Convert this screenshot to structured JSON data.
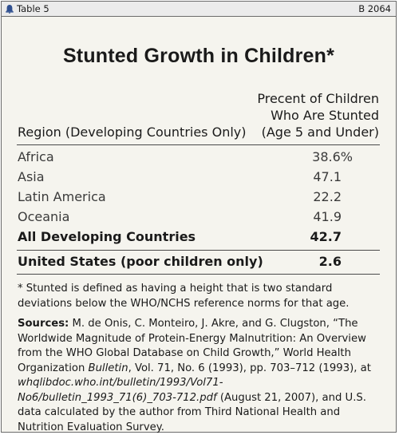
{
  "header": {
    "label": "Table 5",
    "code": "B 2064",
    "icon": "bell-icon"
  },
  "title": "Stunted Growth in Children*",
  "columns": {
    "region": "Region (Developing Countries Only)",
    "value_lines": [
      "Precent of Children",
      "Who Are Stunted",
      "(Age 5 and Under)"
    ]
  },
  "rows": [
    {
      "region": "Africa",
      "value": "38.6%"
    },
    {
      "region": "Asia",
      "value": "47.1"
    },
    {
      "region": "Latin America",
      "value": "22.2"
    },
    {
      "region": "Oceania",
      "value": "41.9"
    }
  ],
  "total_row": {
    "region": "All Developing Countries",
    "value": "42.7"
  },
  "us_row": {
    "region": "United States (poor children only)",
    "value": "2.6"
  },
  "footnote": "* Stunted is defined as having a height that is two standard deviations below the WHO/NCHS reference norms for that age.",
  "sources": {
    "lead": "Sources:",
    "text1": " M. de Onis, C. Monteiro, J. Akre, and G. Clugston, “The Worldwide Magnitude of Protein-Energy Malnutrition: An Overview from the WHO Global Database on Child Growth,” World Health Organization ",
    "journal": "Bulletin",
    "text2": ", Vol. 71, No. 6 (1993), pp. 703–712 (1993), at ",
    "url": "whqlibdoc.who.int/bulletin/1993/Vol71-No6/bulletin_1993_71(6)_703-712.pdf",
    "text3": " (August 21, 2007), and U.S. data calculated by the author from Third National Health and Nutrition Evaluation Survey."
  },
  "colors": {
    "background": "#f5f4ee",
    "bar": "#ebebeb",
    "text": "#1a1a1a",
    "rule": "#4a4a4a",
    "icon": "#2f4f8f"
  }
}
